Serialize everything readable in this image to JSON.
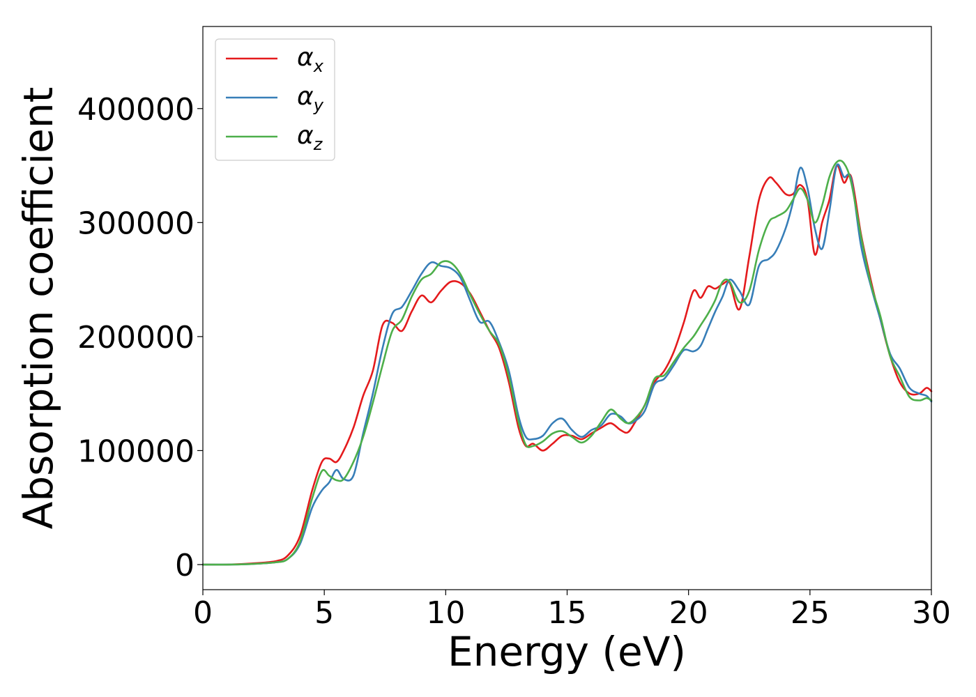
{
  "chart_data": {
    "type": "line",
    "title": "",
    "xlabel": "Energy (eV)",
    "ylabel": "Absorption coefficient",
    "xlim": [
      0,
      30
    ],
    "ylim": [
      -22000,
      472000
    ],
    "xticks": [
      0,
      5,
      10,
      15,
      20,
      25,
      30
    ],
    "yticks": [
      0,
      100000,
      200000,
      300000,
      400000
    ],
    "grid": false,
    "legend": "top-left",
    "series": [
      {
        "name": "α",
        "sub": "x",
        "color": "#e41a1c",
        "x": [
          0,
          1,
          2,
          3,
          3.5,
          4,
          4.5,
          4.9,
          5.2,
          5.5,
          5.8,
          6.2,
          6.6,
          7,
          7.4,
          7.8,
          8.2,
          8.6,
          9,
          9.4,
          9.8,
          10.2,
          10.6,
          11,
          11.4,
          11.8,
          12.2,
          12.6,
          13,
          13.3,
          13.6,
          14,
          14.4,
          14.8,
          15.2,
          15.6,
          16,
          16.4,
          16.8,
          17.2,
          17.5,
          17.8,
          18.2,
          18.6,
          19,
          19.4,
          19.8,
          20.2,
          20.5,
          20.8,
          21.1,
          21.4,
          21.7,
          22.1,
          22.5,
          22.9,
          23.3,
          23.6,
          24,
          24.3,
          24.6,
          24.9,
          25.2,
          25.5,
          25.8,
          26.1,
          26.4,
          26.7,
          27.1,
          27.5,
          27.9,
          28.3,
          28.7,
          29.1,
          29.5,
          29.8,
          30
        ],
        "y": [
          0,
          0,
          1000,
          3000,
          8000,
          25000,
          65000,
          90000,
          93000,
          90000,
          100000,
          120000,
          148000,
          170000,
          210000,
          212000,
          205000,
          222000,
          236000,
          230000,
          240000,
          248000,
          247000,
          238000,
          222000,
          205000,
          190000,
          160000,
          120000,
          104000,
          106000,
          100000,
          106000,
          113000,
          113000,
          110000,
          115000,
          120000,
          124000,
          118000,
          116000,
          125000,
          140000,
          160000,
          170000,
          187000,
          212000,
          240000,
          234000,
          244000,
          242000,
          246000,
          247000,
          224000,
          270000,
          320000,
          339000,
          335000,
          325000,
          325000,
          333000,
          320000,
          272000,
          300000,
          320000,
          350000,
          335000,
          340000,
          290000,
          250000,
          215000,
          183000,
          160000,
          150000,
          150000,
          155000,
          152000
        ]
      },
      {
        "name": "α",
        "sub": "y",
        "color": "#377eb8",
        "x": [
          0,
          1,
          2,
          3,
          3.5,
          4,
          4.5,
          4.9,
          5.2,
          5.5,
          5.8,
          6.2,
          6.6,
          7,
          7.4,
          7.8,
          8.2,
          8.6,
          9,
          9.4,
          9.8,
          10.2,
          10.6,
          11,
          11.4,
          11.8,
          12.2,
          12.6,
          13,
          13.3,
          13.6,
          14,
          14.4,
          14.8,
          15.2,
          15.6,
          16,
          16.4,
          16.8,
          17.2,
          17.5,
          17.8,
          18.2,
          18.6,
          19,
          19.4,
          19.8,
          20.2,
          20.5,
          20.8,
          21.1,
          21.4,
          21.7,
          22.1,
          22.5,
          22.9,
          23.3,
          23.6,
          24,
          24.3,
          24.6,
          24.9,
          25.2,
          25.5,
          25.8,
          26.1,
          26.4,
          26.7,
          27.1,
          27.5,
          27.9,
          28.3,
          28.7,
          29.1,
          29.5,
          29.8,
          30
        ],
        "y": [
          0,
          0,
          500,
          2000,
          5000,
          18000,
          50000,
          65000,
          72000,
          83000,
          75000,
          78000,
          115000,
          150000,
          190000,
          220000,
          226000,
          240000,
          255000,
          265000,
          262000,
          260000,
          252000,
          232000,
          213000,
          213000,
          195000,
          170000,
          130000,
          112000,
          110000,
          113000,
          124000,
          128000,
          118000,
          112000,
          118000,
          122000,
          132000,
          130000,
          124000,
          126000,
          135000,
          158000,
          163000,
          175000,
          188000,
          187000,
          192000,
          207000,
          222000,
          235000,
          250000,
          240000,
          228000,
          262000,
          268000,
          275000,
          295000,
          318000,
          348000,
          330000,
          295000,
          277000,
          310000,
          350000,
          340000,
          338000,
          280000,
          245000,
          215000,
          185000,
          172000,
          155000,
          150000,
          148000,
          143000
        ]
      },
      {
        "name": "α",
        "sub": "z",
        "color": "#4daf4a",
        "x": [
          0,
          1,
          2,
          3,
          3.5,
          4,
          4.5,
          4.9,
          5.2,
          5.5,
          5.8,
          6.2,
          6.6,
          7,
          7.4,
          7.8,
          8.2,
          8.6,
          9,
          9.4,
          9.8,
          10.2,
          10.6,
          11,
          11.4,
          11.8,
          12.2,
          12.6,
          13,
          13.3,
          13.6,
          14,
          14.4,
          14.8,
          15.2,
          15.6,
          16,
          16.4,
          16.8,
          17.2,
          17.5,
          17.8,
          18.2,
          18.6,
          19,
          19.4,
          19.8,
          20.2,
          20.5,
          20.8,
          21.1,
          21.4,
          21.7,
          22.1,
          22.5,
          22.9,
          23.3,
          23.6,
          24,
          24.3,
          24.6,
          24.9,
          25.2,
          25.5,
          25.8,
          26.1,
          26.4,
          26.7,
          27.1,
          27.5,
          27.9,
          28.3,
          28.7,
          29.1,
          29.5,
          29.8,
          30
        ],
        "y": [
          0,
          0,
          500,
          2000,
          5000,
          20000,
          58000,
          82000,
          78000,
          74000,
          75000,
          90000,
          112000,
          142000,
          175000,
          205000,
          215000,
          235000,
          250000,
          255000,
          265000,
          265000,
          255000,
          237000,
          220000,
          205000,
          193000,
          165000,
          125000,
          105000,
          104000,
          108000,
          115000,
          117000,
          112000,
          107000,
          113000,
          125000,
          136000,
          128000,
          124000,
          128000,
          140000,
          163000,
          166000,
          178000,
          190000,
          200000,
          210000,
          220000,
          232000,
          248000,
          248000,
          230000,
          240000,
          276000,
          300000,
          305000,
          310000,
          320000,
          330000,
          320000,
          300000,
          315000,
          340000,
          353000,
          352000,
          335000,
          288000,
          247000,
          218000,
          183000,
          165000,
          147000,
          144000,
          146000,
          144000
        ]
      }
    ]
  }
}
